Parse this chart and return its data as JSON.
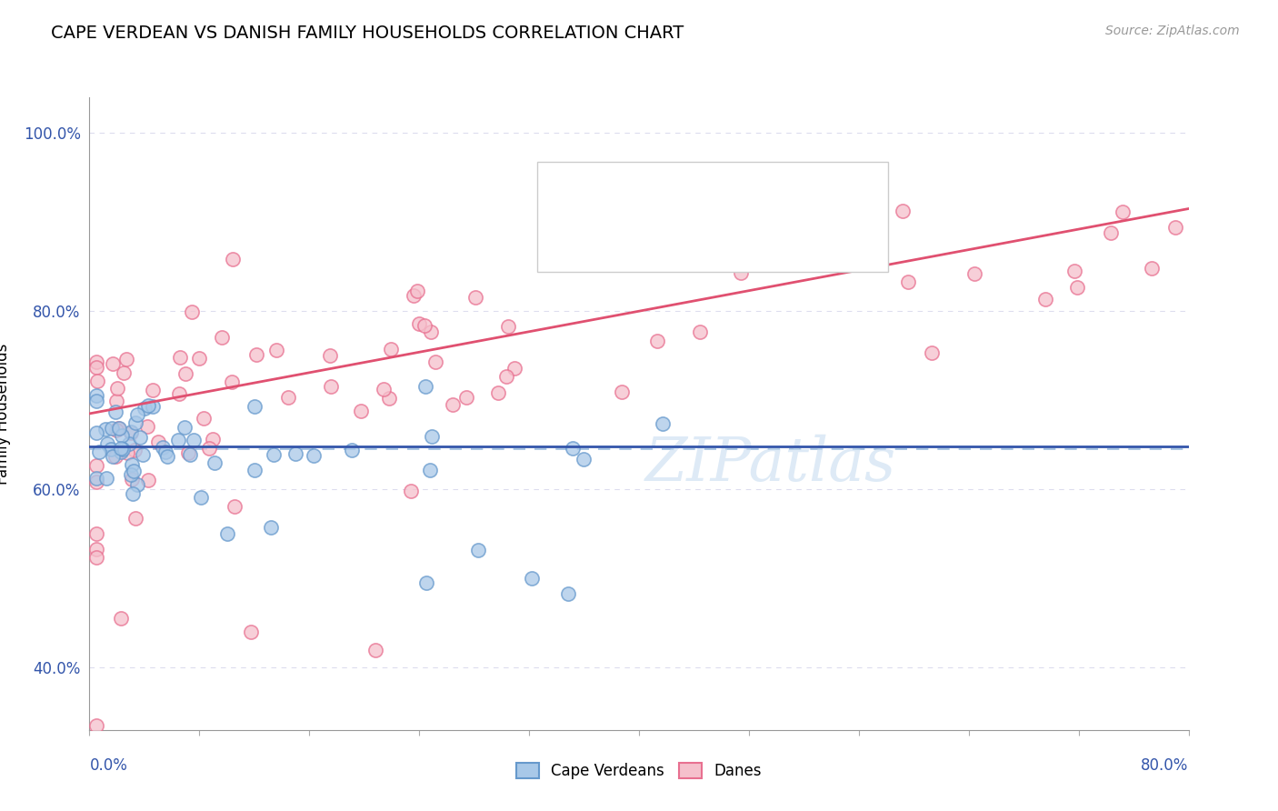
{
  "title": "CAPE VERDEAN VS DANISH FAMILY HOUSEHOLDS CORRELATION CHART",
  "source_text": "Source: ZipAtlas.com",
  "ylabel": "Family Households",
  "xmin": 0.0,
  "xmax": 0.8,
  "ymin": 0.33,
  "ymax": 1.04,
  "yticks": [
    0.4,
    0.6,
    0.8,
    1.0
  ],
  "ytick_labels": [
    "40.0%",
    "60.0%",
    "80.0%",
    "100.0%"
  ],
  "blue_color": "#a8c8e8",
  "blue_edge_color": "#6699cc",
  "pink_color": "#f5c0cc",
  "pink_edge_color": "#e87090",
  "blue_line_color": "#3355aa",
  "pink_line_color": "#e05070",
  "legend_text_color": "#3355aa",
  "dashed_line_y": 0.645,
  "dashed_line_color": "#99bbdd",
  "grid_color": "#ddddee",
  "blue_line_y0": 0.648,
  "blue_line_y1": 0.648,
  "pink_line_y0": 0.685,
  "pink_line_y1": 0.915,
  "watermark": "ZIPatlas",
  "watermark_color": "#c8ddf0"
}
